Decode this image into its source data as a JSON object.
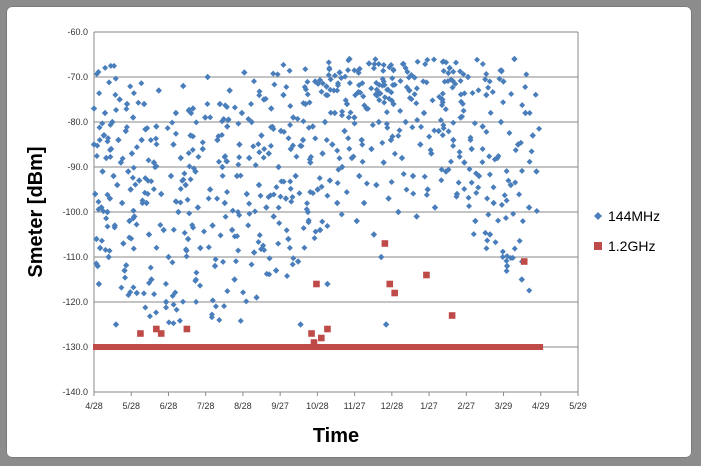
{
  "chart_data": {
    "type": "scatter",
    "xlabel": "Time",
    "ylabel": "Smeter [dBm]",
    "x_ticks": [
      "4/28",
      "5/28",
      "6/28",
      "7/28",
      "8/28",
      "9/27",
      "10/28",
      "11/27",
      "12/28",
      "1/27",
      "2/27",
      "3/29",
      "4/29",
      "5/29"
    ],
    "y_ticks": [
      "-60.0",
      "-70.0",
      "-80.0",
      "-90.0",
      "-100.0",
      "-110.0",
      "-120.0",
      "-130.0",
      "-140.0"
    ],
    "xlim": [
      "4/28",
      "5/29"
    ],
    "ylim": [
      -140,
      -60
    ],
    "grid": "horizontal",
    "legend_position": "right",
    "series": [
      {
        "name": "144MHz",
        "color": "#4a7ebb",
        "marker": "diamond",
        "note_distribution": "dense scatter between about -125 and -66 dBm across 4/28 to 4/29",
        "points": [
          [
            "4/28",
            -85
          ],
          [
            "4/29",
            -96
          ],
          [
            "4/30",
            -106
          ],
          [
            "5/1",
            -112
          ],
          [
            "5/2",
            -116
          ],
          [
            "5/3",
            -108
          ],
          [
            "5/4",
            -99
          ],
          [
            "5/5",
            -91
          ],
          [
            "5/6",
            -83
          ],
          [
            "5/7",
            -78
          ],
          [
            "5/8",
            -88
          ],
          [
            "5/9",
            -100
          ],
          [
            "5/10",
            -110
          ],
          [
            "5/11",
            -97
          ],
          [
            "5/12",
            -86
          ],
          [
            "5/13",
            -80
          ],
          [
            "5/14",
            -92
          ],
          [
            "5/15",
            -103
          ],
          [
            "5/16",
            -125
          ],
          [
            "5/17",
            -94
          ],
          [
            "5/18",
            -84
          ],
          [
            "5/19",
            -75
          ],
          [
            "5/20",
            -89
          ],
          [
            "5/21",
            -98
          ],
          [
            "5/22",
            -107
          ],
          [
            "5/23",
            -113
          ],
          [
            "5/24",
            -82
          ],
          [
            "5/25",
            -76
          ],
          [
            "5/26",
            -91
          ],
          [
            "5/27",
            -102
          ],
          [
            "5/28",
            -95
          ],
          [
            "5/29",
            -87
          ],
          [
            "5/30",
            -79
          ],
          [
            "5/31",
            -101
          ],
          [
            "6/2",
            -118
          ],
          [
            "6/4",
            -93
          ],
          [
            "6/6",
            -84
          ],
          [
            "6/8",
            -76
          ],
          [
            "6/10",
            -98
          ],
          [
            "6/12",
            -105
          ],
          [
            "6/14",
            -115
          ],
          [
            "6/16",
            -89
          ],
          [
            "6/18",
            -81
          ],
          [
            "6/20",
            -73
          ],
          [
            "6/22",
            -96
          ],
          [
            "6/24",
            -104
          ],
          [
            "6/26",
            -120
          ],
          [
            "6/28",
            -110
          ],
          [
            "6/30",
            -92
          ],
          [
            "7/2",
            -85
          ],
          [
            "7/4",
            -78
          ],
          [
            "7/6",
            -100
          ],
          [
            "7/8",
            -88
          ],
          [
            "7/10",
            -72
          ],
          [
            "7/12",
            -94
          ],
          [
            "7/14",
            -106
          ],
          [
            "7/16",
            -83
          ],
          [
            "7/18",
            -77
          ],
          [
            "7/20",
            -91
          ],
          [
            "7/22",
            -99
          ],
          [
            "7/24",
            -108
          ],
          [
            "7/26",
            -86
          ],
          [
            "7/28",
            -79
          ],
          [
            "7/30",
            -70
          ],
          [
            "8/1",
            -95
          ],
          [
            "8/3",
            -103
          ],
          [
            "8/5",
            -112
          ],
          [
            "8/7",
            -84
          ],
          [
            "8/9",
            -76
          ],
          [
            "8/11",
            -90
          ],
          [
            "8/13",
            -98
          ],
          [
            "8/15",
            -81
          ],
          [
            "8/17",
            -73
          ],
          [
            "8/19",
            -104
          ],
          [
            "8/21",
            -115
          ],
          [
            "8/23",
            -92
          ],
          [
            "8/25",
            -85
          ],
          [
            "8/27",
            -78
          ],
          [
            "8/29",
            -69
          ],
          [
            "8/31",
            -96
          ],
          [
            "9/2",
            -88
          ],
          [
            "9/4",
            -80
          ],
          [
            "9/6",
            -109
          ],
          [
            "9/8",
            -119
          ],
          [
            "9/10",
            -94
          ],
          [
            "9/12",
            -83
          ],
          [
            "9/14",
            -75
          ],
          [
            "9/16",
            -99
          ],
          [
            "9/18",
            -87
          ],
          [
            "9/20",
            -77
          ],
          [
            "9/22",
            -101
          ],
          [
            "9/24",
            -113
          ],
          [
            "9/26",
            -90
          ],
          [
            "9/28",
            -82
          ],
          [
            "9/30",
            -74
          ],
          [
            "10/2",
            -97
          ],
          [
            "10/4",
            -106
          ],
          [
            "10/6",
            -86
          ],
          [
            "10/8",
            -79
          ],
          [
            "10/10",
            -92
          ],
          [
            "10/12",
            -111
          ],
          [
            "10/14",
            -125
          ],
          [
            "10/16",
            -84
          ],
          [
            "10/18",
            -76
          ],
          [
            "10/20",
            -100
          ],
          [
            "10/22",
            -89
          ],
          [
            "10/24",
            -81
          ],
          [
            "10/26",
            -71
          ],
          [
            "10/28",
            -95
          ],
          [
            "10/30",
            -104
          ],
          [
            "11/1",
            -87
          ],
          [
            "11/3",
            -80
          ],
          [
            "11/5",
            -116
          ],
          [
            "11/7",
            -93
          ],
          [
            "11/9",
            -85
          ],
          [
            "11/11",
            -78
          ],
          [
            "11/13",
            -98
          ],
          [
            "11/15",
            -69
          ],
          [
            "11/17",
            -90
          ],
          [
            "11/19",
            -82
          ],
          [
            "11/21",
            -76
          ],
          [
            "11/23",
            -66
          ],
          [
            "11/25",
            -88
          ],
          [
            "11/27",
            -79
          ],
          [
            "11/29",
            -102
          ],
          [
            "12/1",
            -92
          ],
          [
            "12/3",
            -84
          ],
          [
            "12/5",
            -98
          ],
          [
            "12/7",
            -77
          ],
          [
            "12/9",
            -67
          ],
          [
            "12/11",
            -86
          ],
          [
            "12/13",
            -105
          ],
          [
            "12/15",
            -94
          ],
          [
            "12/17",
            -80
          ],
          [
            "12/19",
            -110
          ],
          [
            "12/21",
            -89
          ],
          [
            "12/23",
            -125
          ],
          [
            "12/25",
            -97
          ],
          [
            "12/27",
            -84
          ],
          [
            "12/29",
            -76
          ],
          [
            "1/2",
            -100
          ],
          [
            "1/5",
            -88
          ],
          [
            "1/8",
            -80
          ],
          [
            "1/11",
            -73
          ],
          [
            "1/14",
            -92
          ],
          [
            "1/17",
            -101
          ],
          [
            "1/20",
            -85
          ],
          [
            "1/23",
            -78
          ],
          [
            "1/26",
            -95
          ],
          [
            "1/29",
            -87
          ],
          [
            "2/1",
            -99
          ],
          [
            "2/4",
            -82
          ],
          [
            "2/7",
            -75
          ],
          [
            "2/10",
            -91
          ],
          [
            "2/13",
            -68
          ],
          [
            "2/16",
            -84
          ],
          [
            "2/19",
            -96
          ],
          [
            "2/22",
            -79
          ],
          [
            "2/25",
            -89
          ],
          [
            "2/28",
            -70
          ],
          [
            "3/3",
            -86
          ],
          [
            "3/6",
            -102
          ],
          [
            "3/9",
            -92
          ],
          [
            "3/12",
            -81
          ],
          [
            "3/15",
            -74
          ],
          [
            "3/18",
            -105
          ],
          [
            "3/21",
            -98
          ],
          [
            "3/24",
            -88
          ],
          [
            "3/27",
            -80
          ],
          [
            "3/29",
            -71
          ],
          [
            "4/1",
            -112
          ],
          [
            "4/4",
            -94
          ],
          [
            "4/7",
            -66
          ],
          [
            "4/10",
            -85
          ],
          [
            "4/13",
            -115
          ],
          [
            "4/16",
            -78
          ],
          [
            "4/19",
            -99
          ],
          [
            "4/22",
            -83
          ],
          [
            "4/25",
            -91
          ],
          [
            "4/28",
            -77
          ]
        ]
      },
      {
        "name": "1.2GHz",
        "color": "#be4b48",
        "marker": "square",
        "note_distribution": "floor around -130 dBm across entire span",
        "floor_value": -130,
        "points": [
          [
            "6/5",
            -127
          ],
          [
            "6/18",
            -126
          ],
          [
            "6/22",
            -127
          ],
          [
            "7/13",
            -126
          ],
          [
            "10/23",
            -127
          ],
          [
            "10/25",
            -129
          ],
          [
            "10/27",
            -116
          ],
          [
            "10/31",
            -128
          ],
          [
            "11/5",
            -126
          ],
          [
            "12/22",
            -107
          ],
          [
            "12/26",
            -116
          ],
          [
            "12/30",
            -118
          ],
          [
            "1/25",
            -114
          ],
          [
            "2/15",
            -123
          ],
          [
            "4/15",
            -111
          ]
        ]
      }
    ]
  }
}
